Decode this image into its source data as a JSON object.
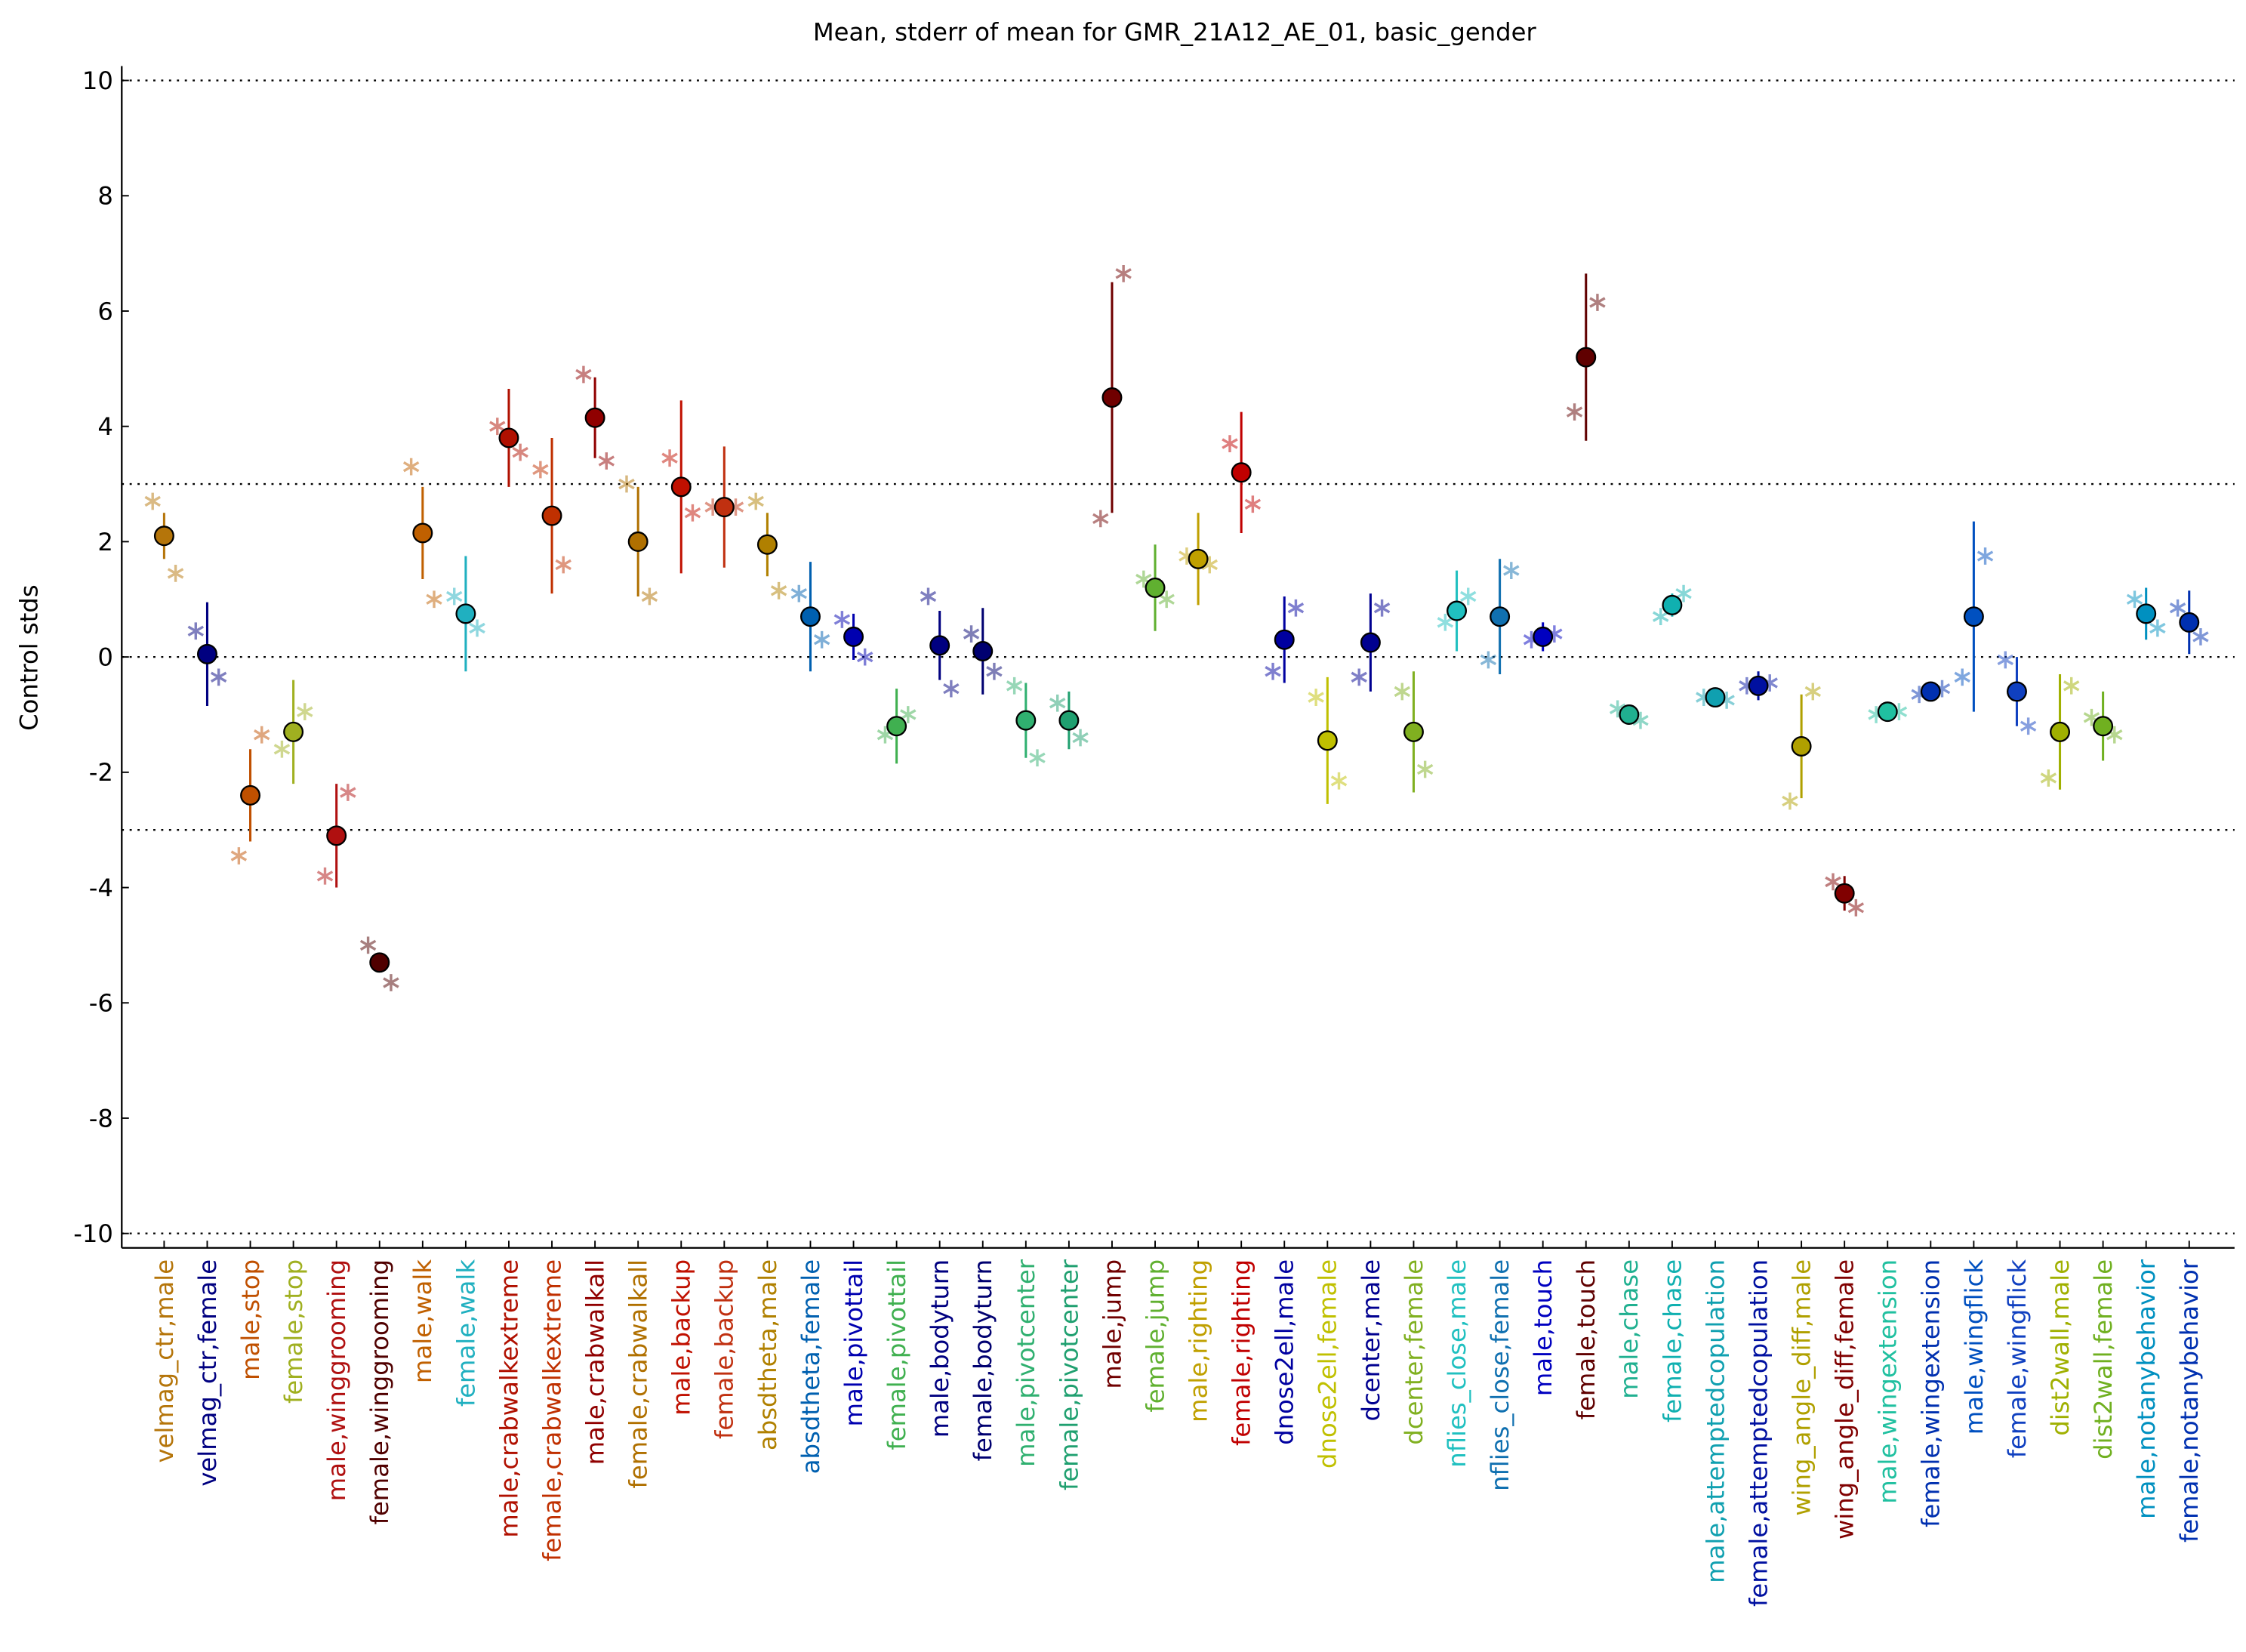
{
  "chart_data": {
    "type": "errorbar",
    "title": "Mean, stderr of mean for GMR_21A12_AE_01, basic_gender",
    "ylabel": "Control stds",
    "ylim": [
      -10.25,
      10.25
    ],
    "yticks": [
      -10,
      -8,
      -6,
      -4,
      -2,
      0,
      2,
      4,
      6,
      8,
      10
    ],
    "reference_lines": [
      -10,
      -3,
      0,
      3,
      10
    ],
    "categories": [
      "velmag_ctr,male",
      "velmag_ctr,female",
      "male,stop",
      "female,stop",
      "male,winggrooming",
      "female,winggrooming",
      "male,walk",
      "female,walk",
      "male,crabwalkextreme",
      "female,crabwalkextreme",
      "male,crabwalkall",
      "female,crabwalkall",
      "male,backup",
      "female,backup",
      "absdtheta,male",
      "absdtheta,female",
      "male,pivottail",
      "female,pivottail",
      "male,bodyturn",
      "female,bodyturn",
      "male,pivotcenter",
      "female,pivotcenter",
      "male,jump",
      "female,jump",
      "male,righting",
      "female,righting",
      "dnose2ell,male",
      "dnose2ell,female",
      "dcenter,male",
      "dcenter,female",
      "nflies_close,male",
      "nflies_close,female",
      "male,touch",
      "female,touch",
      "male,chase",
      "female,chase",
      "male,attemptedcopulation",
      "female,attemptedcopulation",
      "wing_angle_diff,male",
      "wing_angle_diff,female",
      "male,wingextension",
      "female,wingextension",
      "male,wingflick",
      "female,wingflick",
      "dist2wall,male",
      "dist2wall,female",
      "male,notanybehavior",
      "female,notanybehavior"
    ],
    "colors": [
      "#b5750a",
      "#000080",
      "#c05000",
      "#a0b020",
      "#b01010",
      "#500000",
      "#c06000",
      "#20b0c0",
      "#b01000",
      "#c03000",
      "#900000",
      "#b07000",
      "#c01000",
      "#c03010",
      "#b08000",
      "#0060b0",
      "#0000b0",
      "#40b050",
      "#000080",
      "#000070",
      "#30b070",
      "#20a070",
      "#700000",
      "#60b030",
      "#c0a000",
      "#c00000",
      "#0000a0",
      "#c0c000",
      "#000090",
      "#80b020",
      "#20c0c0",
      "#1070b0",
      "#0000c0",
      "#600000",
      "#20b090",
      "#10b0b0",
      "#10a0b0",
      "#0010a0",
      "#b0a000",
      "#800000",
      "#20c0a0",
      "#0030b0",
      "#0050c0",
      "#1040c0",
      "#a0b000",
      "#70b020",
      "#0090c0",
      "#0030b0"
    ],
    "values": [
      2.1,
      0.05,
      -2.4,
      -1.3,
      -3.1,
      -5.3,
      2.15,
      0.75,
      3.8,
      2.45,
      4.15,
      2.0,
      2.95,
      2.6,
      1.95,
      0.7,
      0.35,
      -1.2,
      0.2,
      0.1,
      -1.1,
      -1.1,
      4.5,
      1.2,
      1.7,
      3.2,
      0.3,
      -1.45,
      0.25,
      -1.3,
      0.8,
      0.7,
      0.35,
      5.2,
      -1.0,
      0.9,
      -0.7,
      -0.5,
      -1.55,
      -4.1,
      -0.95,
      -0.6,
      0.7,
      -0.6,
      -1.3,
      -1.2,
      0.75,
      0.6
    ],
    "errors": [
      0.4,
      0.9,
      0.8,
      0.9,
      0.9,
      0.15,
      0.8,
      1.0,
      0.85,
      1.35,
      0.7,
      0.95,
      1.5,
      1.05,
      0.55,
      0.95,
      0.4,
      0.65,
      0.6,
      0.75,
      0.65,
      0.5,
      2.0,
      0.75,
      0.8,
      1.05,
      0.75,
      1.1,
      0.85,
      1.05,
      0.7,
      1.0,
      0.25,
      1.45,
      0.1,
      0.2,
      0.1,
      0.25,
      0.9,
      0.3,
      0.1,
      0.1,
      1.65,
      0.6,
      1.0,
      0.6,
      0.45,
      0.55
    ],
    "points_left": [
      2.7,
      0.45,
      -3.45,
      -1.6,
      -3.8,
      -5.0,
      3.3,
      1.05,
      4.0,
      3.25,
      4.9,
      3.0,
      3.45,
      2.6,
      2.7,
      1.1,
      0.65,
      -1.35,
      1.05,
      0.4,
      -0.5,
      -0.8,
      2.4,
      1.35,
      1.75,
      3.7,
      -0.25,
      -0.7,
      -0.35,
      -0.6,
      0.6,
      -0.05,
      0.3,
      4.25,
      -0.9,
      0.7,
      -0.7,
      -0.5,
      -2.5,
      -3.9,
      -1.0,
      -0.65,
      -0.35,
      -0.05,
      -2.1,
      -1.05,
      1.0,
      0.85
    ],
    "points_right": [
      1.45,
      -0.35,
      -1.35,
      -0.95,
      -2.35,
      -5.65,
      1.0,
      0.5,
      3.55,
      1.6,
      3.4,
      1.05,
      2.5,
      2.6,
      1.15,
      0.3,
      0.0,
      -1.0,
      -0.55,
      -0.25,
      -1.75,
      -1.4,
      6.65,
      1.0,
      1.6,
      2.65,
      0.85,
      -2.15,
      0.85,
      -1.95,
      1.05,
      1.5,
      0.4,
      6.15,
      -1.1,
      1.1,
      -0.75,
      -0.45,
      -0.6,
      -4.35,
      -0.95,
      -0.55,
      1.75,
      -1.2,
      -0.5,
      -1.35,
      0.5,
      0.35
    ]
  }
}
